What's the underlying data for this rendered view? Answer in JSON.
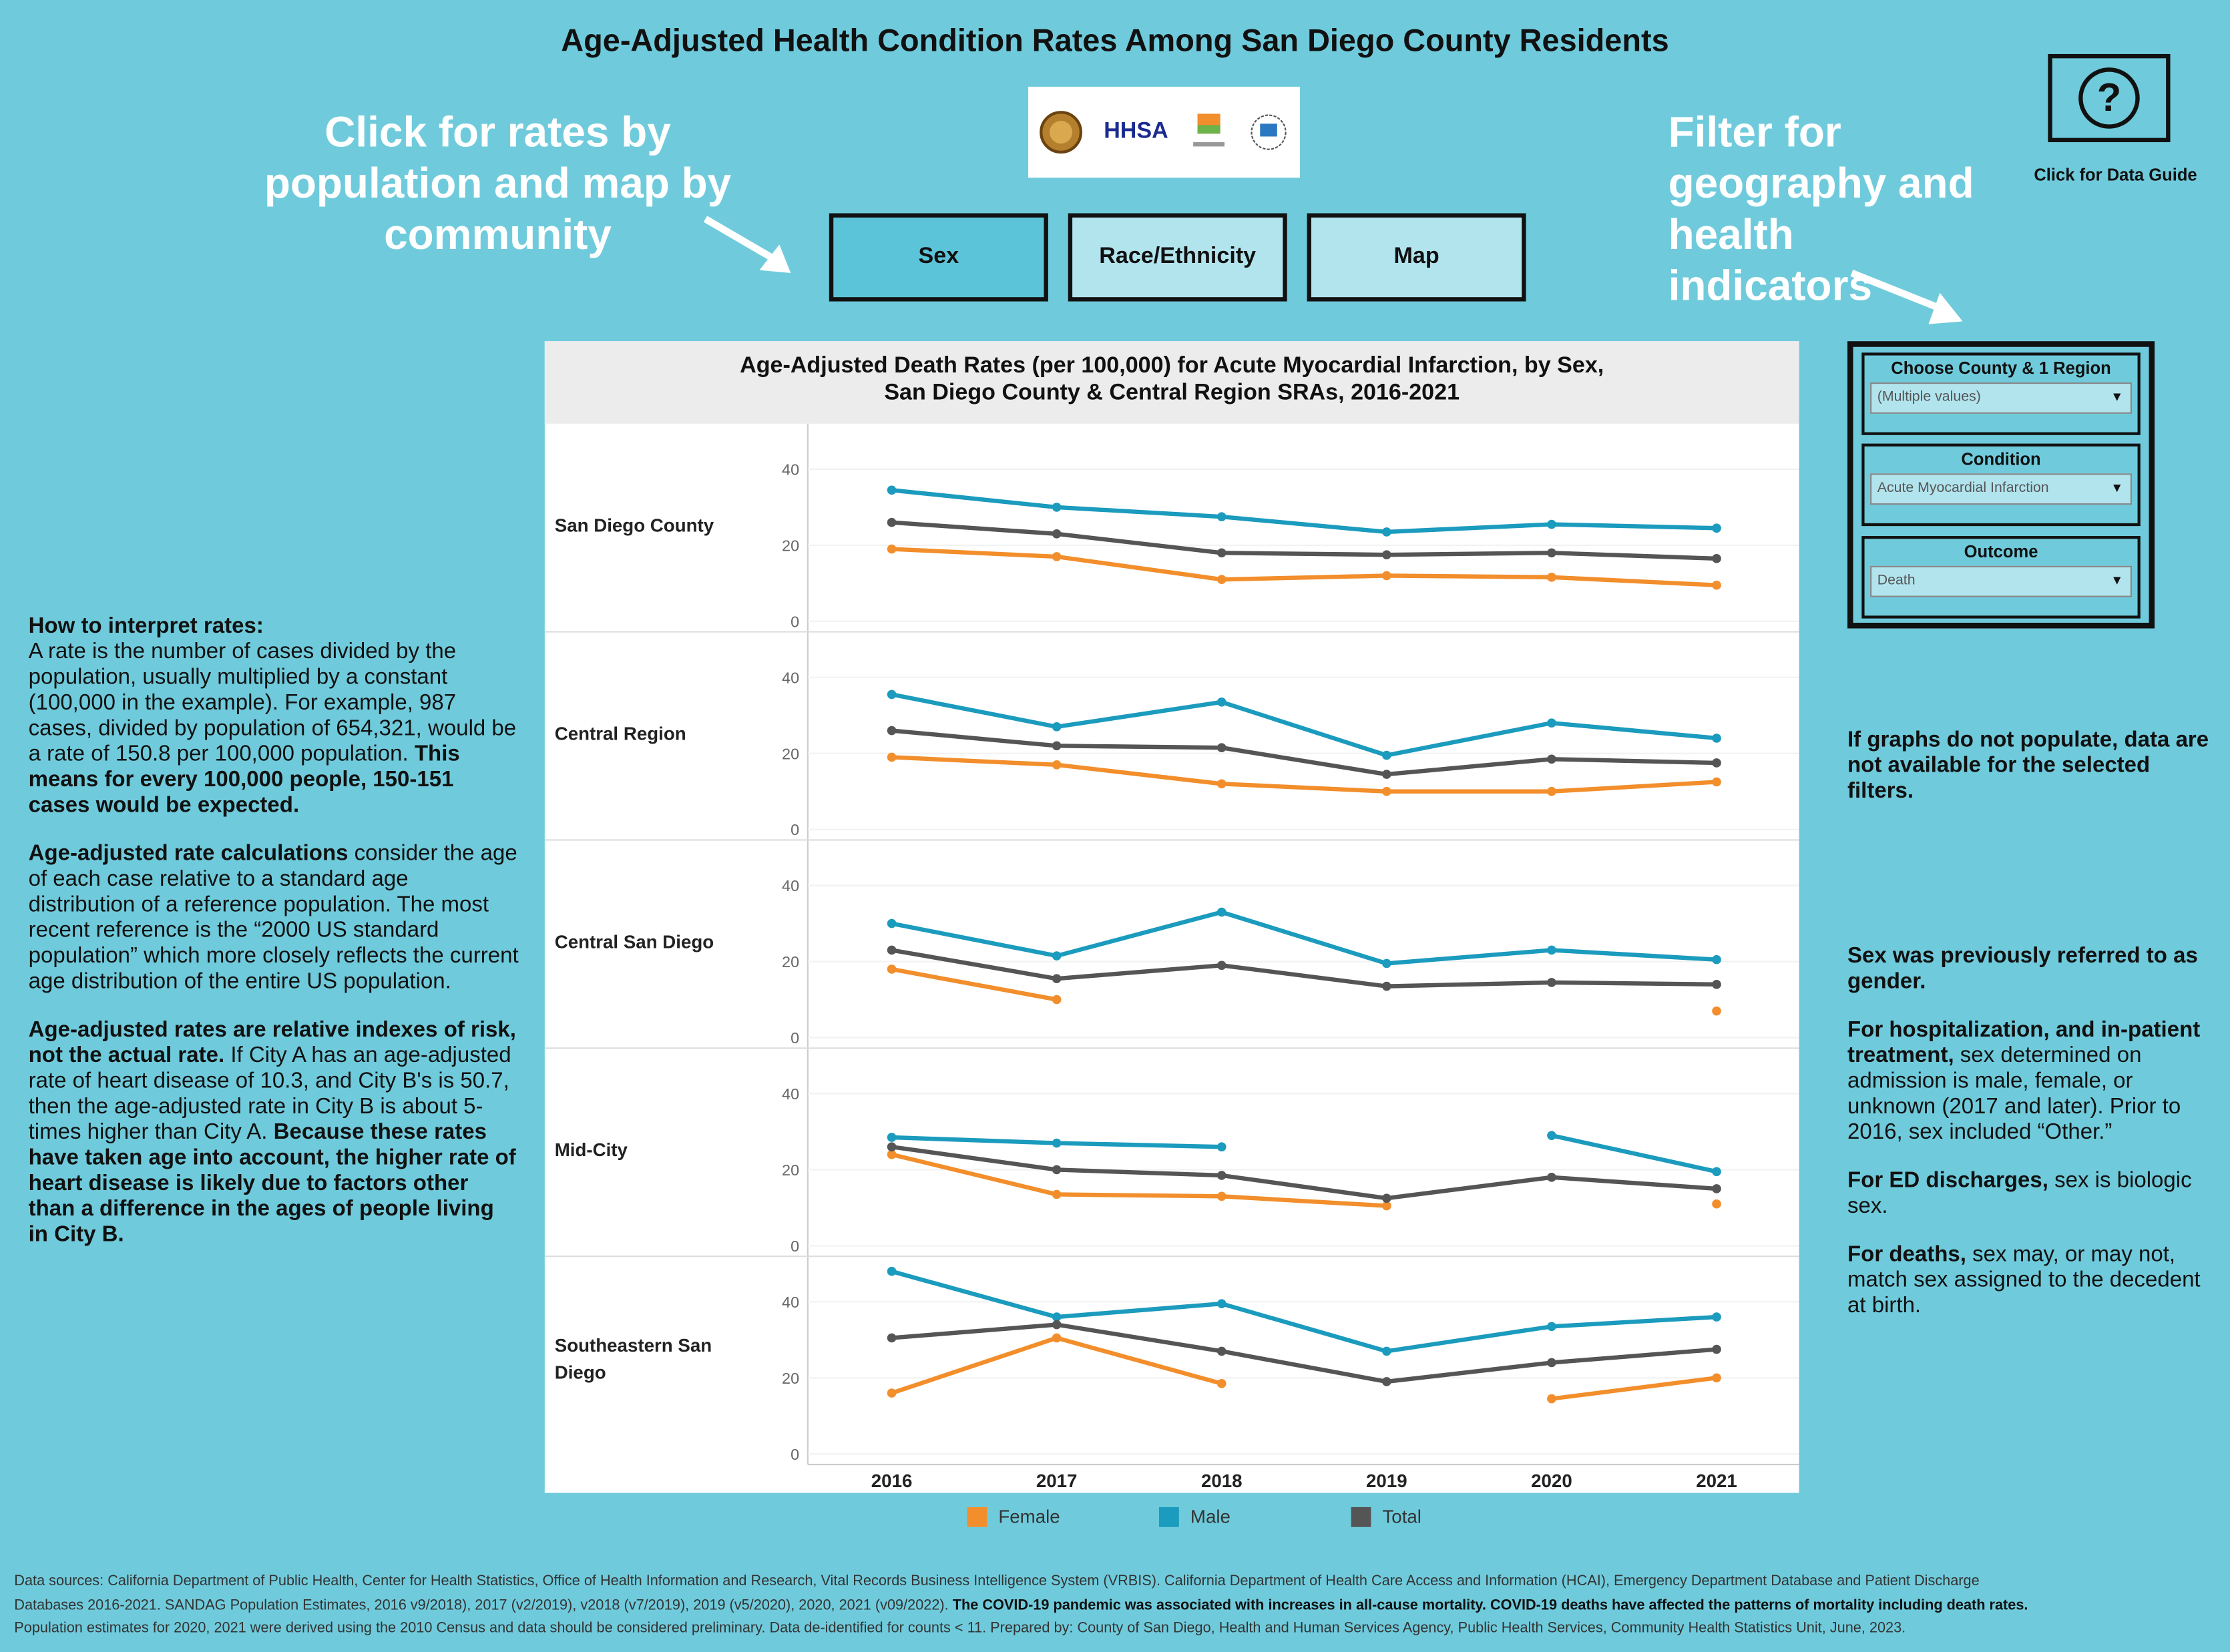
{
  "page": {
    "title": "Age-Adjusted Health Condition Rates Among San Diego County Residents",
    "logos": [
      "County of San Diego seal",
      "HHSA",
      "LIVE WELL SAN DIEGO",
      "accreditation seal"
    ],
    "logo_hhsa_text": "HHSA",
    "hint_left": "Click for rates by population and map by community",
    "hint_right": "Filter for geography and health indicators",
    "help_label": "Click for Data Guide"
  },
  "nav": {
    "buttons": [
      {
        "label": "Sex",
        "active": true
      },
      {
        "label": "Race/Ethnicity",
        "active": false
      },
      {
        "label": "Map",
        "active": false
      }
    ]
  },
  "filters": {
    "region": {
      "label": "Choose County & 1 Region",
      "value": "(Multiple values)"
    },
    "condition": {
      "label": "Condition",
      "value": "Acute Myocardial Infarction"
    },
    "outcome": {
      "label": "Outcome",
      "value": "Death"
    }
  },
  "left_text": {
    "p1_bold": "How to interpret rates:",
    "p1_text": "A rate is the number of cases divided by the population, usually multiplied by a constant (100,000 in the example). For example, 987 cases, divided by population of 654,321, would be a rate of 150.8 per 100,000 population. ",
    "p1_bold2": "This means for every 100,000 people, 150-151 cases would be expected.",
    "p2_bold": "Age-adjusted rate calculations",
    "p2_text": " consider the age of each case relative to a standard age distribution of a reference population. The most recent reference is the “2000 US standard population” which more closely reflects the current age distribution of the entire US population.",
    "p3_bold": "Age-adjusted rates are relative indexes of risk, not the actual rate.",
    "p3_text": " If City A has an age-adjusted rate of heart disease of 10.3, and City B's is 50.7, then the age-adjusted rate in City B is about 5-times higher than City A. ",
    "p3_bold2": "Because these rates have taken age into account, the higher rate of heart disease is likely due to factors other than a difference in the ages of people living in City B."
  },
  "right_text": {
    "no_data": "If graphs do not populate, data are not available for the selected filters.",
    "sex_note": "Sex was previously referred to as gender.",
    "hosp_bold": "For hospitalization, and in-patient treatment,",
    "hosp_text": " sex determined on admission is male, female, or unknown (2017 and later). Prior to 2016, sex included “Other.”",
    "ed_bold": "For ED discharges,",
    "ed_text": " sex is biologic sex.",
    "death_bold": "For deaths,",
    "death_text": " sex may, or may not, match sex assigned to the decedent at birth."
  },
  "footer": {
    "line1": "Data sources: California Department of Public Health, Center for Health Statistics, Office of Health Information and Research, Vital Records Business Intelligence System (VRBIS).  California Department of Health Care Access and Information (HCAI), Emergency Department Database and Patient Discharge",
    "line2a": "Databases 2016-2021. SANDAG Population Estimates, 2016 v9/2018), 2017 (v2/2019), v2018 (v7/2019), 2019 (v5/2020), 2020, 2021 (v09/2022). ",
    "line2b": "The COVID-19 pandemic was associated with increases in all-cause mortality. COVID-19 deaths have affected the patterns of mortality including death rates.",
    "line3": "Population estimates for 2020, 2021 were derived using the 2010 Census and data should be considered preliminary. Data de-identified for counts < 11. Prepared by: County of San Diego, Health and Human Services Agency, Public Health Services, Community Health Statistics Unit, June, 2023."
  },
  "chart_data": {
    "type": "line",
    "title_line1": "Age-Adjusted Death Rates (per 100,000) for Acute Myocardial Infarction, by Sex,",
    "title_line2": "San Diego County & Central Region SRAs, 2016-2021",
    "x": [
      "2016",
      "2017",
      "2018",
      "2019",
      "2020",
      "2021"
    ],
    "ylim": [
      0,
      40
    ],
    "yticks": [
      "0",
      "20",
      "40"
    ],
    "legend": [
      {
        "name": "Female",
        "color": "#f28e2b"
      },
      {
        "name": "Male",
        "color": "#1b9bbd"
      },
      {
        "name": "Total",
        "color": "#555555"
      }
    ],
    "legend_position": "bottom",
    "panels": [
      {
        "name": "San Diego County",
        "series": [
          {
            "name": "Female",
            "values": [
              19,
              17,
              11,
              12,
              11.6,
              9.5
            ]
          },
          {
            "name": "Male",
            "values": [
              34.5,
              30,
              27.5,
              23.5,
              25.5,
              24.5
            ]
          },
          {
            "name": "Total",
            "values": [
              26,
              23,
              18,
              17.5,
              18,
              16.5
            ]
          }
        ]
      },
      {
        "name": "Central Region",
        "series": [
          {
            "name": "Female",
            "values": [
              19,
              17,
              12,
              10,
              10,
              12.5
            ]
          },
          {
            "name": "Male",
            "values": [
              35.5,
              27,
              33.5,
              19.5,
              28,
              24
            ]
          },
          {
            "name": "Total",
            "values": [
              26,
              22,
              21.5,
              14.5,
              18.5,
              17.5
            ]
          }
        ]
      },
      {
        "name": "Central San Diego",
        "series": [
          {
            "name": "Female",
            "values": [
              18,
              10,
              null,
              null,
              null,
              7
            ]
          },
          {
            "name": "Male",
            "values": [
              30,
              21.5,
              33,
              19.5,
              23,
              20.5
            ]
          },
          {
            "name": "Total",
            "values": [
              23,
              15.5,
              19,
              13.5,
              14.5,
              14
            ]
          }
        ]
      },
      {
        "name": "Mid-City",
        "series": [
          {
            "name": "Female",
            "values": [
              24,
              13.5,
              13,
              10.5,
              null,
              11
            ]
          },
          {
            "name": "Male",
            "values": [
              28.5,
              27,
              26,
              null,
              29,
              19.5
            ]
          },
          {
            "name": "Total",
            "values": [
              26,
              20,
              18.5,
              12.5,
              18,
              15
            ]
          }
        ]
      },
      {
        "name": "Southeastern San Diego",
        "series": [
          {
            "name": "Female",
            "values": [
              16,
              30.5,
              18.5,
              null,
              14.5,
              20
            ]
          },
          {
            "name": "Male",
            "values": [
              48,
              36,
              39.5,
              27,
              33.5,
              36
            ]
          },
          {
            "name": "Total",
            "values": [
              30.5,
              34,
              27,
              19,
              24,
              27.5
            ]
          }
        ]
      }
    ]
  }
}
